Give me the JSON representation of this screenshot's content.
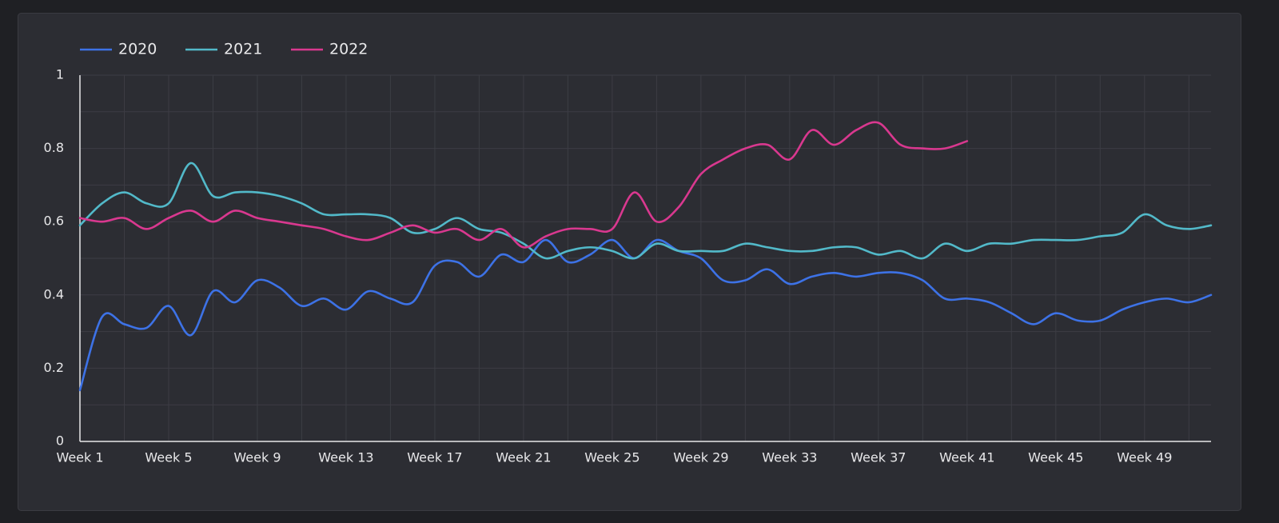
{
  "chart_data": {
    "type": "line",
    "categories": [
      "Week 1",
      null,
      null,
      null,
      "Week 5",
      null,
      null,
      null,
      "Week 9",
      null,
      null,
      null,
      "Week 13",
      null,
      null,
      null,
      "Week 17",
      null,
      null,
      null,
      "Week 21",
      null,
      null,
      null,
      "Week 25",
      null,
      null,
      null,
      "Week 29",
      null,
      null,
      null,
      "Week 33",
      null,
      null,
      null,
      "Week 37",
      null,
      null,
      null,
      "Week 41",
      null,
      null,
      null,
      "Week 45",
      null,
      null,
      null,
      "Week 49",
      null,
      null,
      null
    ],
    "series": [
      {
        "name": "2020",
        "color": "#3d72e6",
        "values": [
          0.14,
          0.34,
          0.32,
          0.31,
          0.37,
          0.29,
          0.41,
          0.38,
          0.44,
          0.42,
          0.37,
          0.39,
          0.36,
          0.41,
          0.39,
          0.38,
          0.48,
          0.49,
          0.45,
          0.51,
          0.49,
          0.55,
          0.49,
          0.51,
          0.55,
          0.5,
          0.55,
          0.52,
          0.5,
          0.44,
          0.44,
          0.47,
          0.43,
          0.45,
          0.46,
          0.45,
          0.46,
          0.46,
          0.44,
          0.39,
          0.39,
          0.38,
          0.35,
          0.32,
          0.35,
          0.33,
          0.33,
          0.36,
          0.38,
          0.39,
          0.38,
          0.4
        ]
      },
      {
        "name": "2021",
        "color": "#52b9c9",
        "values": [
          0.59,
          0.65,
          0.68,
          0.65,
          0.65,
          0.76,
          0.67,
          0.68,
          0.68,
          0.67,
          0.65,
          0.62,
          0.62,
          0.62,
          0.61,
          0.57,
          0.58,
          0.61,
          0.58,
          0.57,
          0.54,
          0.5,
          0.52,
          0.53,
          0.52,
          0.5,
          0.54,
          0.52,
          0.52,
          0.52,
          0.54,
          0.53,
          0.52,
          0.52,
          0.53,
          0.53,
          0.51,
          0.52,
          0.5,
          0.54,
          0.52,
          0.54,
          0.54,
          0.55,
          0.55,
          0.55,
          0.56,
          0.57,
          0.62,
          0.59,
          0.58,
          0.59
        ]
      },
      {
        "name": "2022",
        "color": "#d9388f",
        "values": [
          0.61,
          0.6,
          0.61,
          0.58,
          0.61,
          0.63,
          0.6,
          0.63,
          0.61,
          0.6,
          0.59,
          0.58,
          0.56,
          0.55,
          0.57,
          0.59,
          0.57,
          0.58,
          0.55,
          0.58,
          0.53,
          0.56,
          0.58,
          0.58,
          0.58,
          0.68,
          0.6,
          0.64,
          0.73,
          0.77,
          0.8,
          0.81,
          0.77,
          0.85,
          0.81,
          0.85,
          0.87,
          0.81,
          0.8,
          0.8,
          0.82,
          null,
          null,
          null,
          null,
          null,
          null,
          null,
          null,
          null,
          null,
          null
        ]
      }
    ],
    "ylim": [
      0,
      1
    ],
    "yticks": [
      0,
      0.2,
      0.4,
      0.6,
      0.8,
      1
    ],
    "yticks_minor": [
      0.1,
      0.3,
      0.5,
      0.7,
      0.9
    ],
    "grid": true,
    "legend": "top-left"
  }
}
